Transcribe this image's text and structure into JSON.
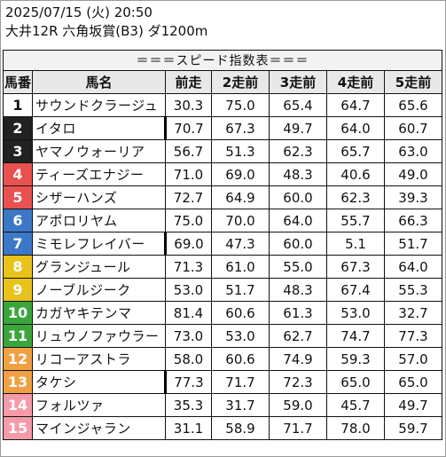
{
  "header": {
    "line1": "2025/07/15 (火) 20:50",
    "line2": "大井12R 六角坂賞(B3) ダ1200m"
  },
  "table": {
    "title": "＝＝＝スピード指数表＝＝＝",
    "columns": [
      "馬番",
      "馬名",
      "前走",
      "2走前",
      "3走前",
      "4走前",
      "5走前"
    ],
    "rows": [
      {
        "num": "1",
        "name": "サウンドクラージュ",
        "v": [
          "30.3",
          "75.0",
          "65.4",
          "64.7",
          "65.6"
        ],
        "bg": "#ffffff",
        "fg": "#111111",
        "mark": false
      },
      {
        "num": "2",
        "name": "イタロ",
        "v": [
          "70.7",
          "67.3",
          "49.7",
          "64.0",
          "60.7"
        ],
        "bg": "#222222",
        "fg": "#ffffff",
        "mark": true
      },
      {
        "num": "3",
        "name": "ヤマノウォーリア",
        "v": [
          "56.7",
          "51.3",
          "62.3",
          "65.7",
          "63.0"
        ],
        "bg": "#222222",
        "fg": "#ffffff",
        "mark": false
      },
      {
        "num": "4",
        "name": "ティーズエナジー",
        "v": [
          "71.0",
          "69.0",
          "48.3",
          "40.6",
          "49.0"
        ],
        "bg": "#e8514f",
        "fg": "#ffffff",
        "mark": false
      },
      {
        "num": "5",
        "name": "シザーハンズ",
        "v": [
          "72.7",
          "64.9",
          "60.0",
          "62.3",
          "39.3"
        ],
        "bg": "#e8514f",
        "fg": "#ffffff",
        "mark": false
      },
      {
        "num": "6",
        "name": "アポロリヤム",
        "v": [
          "75.0",
          "70.0",
          "64.0",
          "55.7",
          "66.3"
        ],
        "bg": "#3d78c8",
        "fg": "#ffffff",
        "mark": false
      },
      {
        "num": "7",
        "name": "ミモレフレイバー",
        "v": [
          "69.0",
          "47.3",
          "60.0",
          "5.1",
          "51.7"
        ],
        "bg": "#3d78c8",
        "fg": "#ffffff",
        "mark": true
      },
      {
        "num": "8",
        "name": "グランジュール",
        "v": [
          "71.3",
          "61.0",
          "55.0",
          "67.3",
          "64.0"
        ],
        "bg": "#e9c21a",
        "fg": "#ffffff",
        "mark": false
      },
      {
        "num": "9",
        "name": "ノーブルジーク",
        "v": [
          "53.0",
          "51.7",
          "48.3",
          "67.4",
          "55.3"
        ],
        "bg": "#e9c21a",
        "fg": "#ffffff",
        "mark": false
      },
      {
        "num": "10",
        "name": "カガヤキテンマ",
        "v": [
          "81.4",
          "60.6",
          "61.3",
          "53.0",
          "32.7"
        ],
        "bg": "#3aa63a",
        "fg": "#ffffff",
        "mark": false
      },
      {
        "num": "11",
        "name": "リュウノファウラー",
        "v": [
          "73.0",
          "53.0",
          "62.7",
          "74.7",
          "77.3"
        ],
        "bg": "#3aa63a",
        "fg": "#ffffff",
        "mark": false
      },
      {
        "num": "12",
        "name": "リコーアストラ",
        "v": [
          "58.0",
          "60.6",
          "74.9",
          "59.3",
          "57.0"
        ],
        "bg": "#f0a040",
        "fg": "#ffffff",
        "mark": false
      },
      {
        "num": "13",
        "name": "タケシ",
        "v": [
          "77.3",
          "71.7",
          "72.3",
          "65.0",
          "65.0"
        ],
        "bg": "#f0a040",
        "fg": "#ffffff",
        "mark": true
      },
      {
        "num": "14",
        "name": "フォルツァ",
        "v": [
          "35.3",
          "31.7",
          "59.0",
          "45.7",
          "49.7"
        ],
        "bg": "#f59aa8",
        "fg": "#ffffff",
        "mark": false
      },
      {
        "num": "15",
        "name": "マインジャラン",
        "v": [
          "31.1",
          "58.9",
          "71.7",
          "78.0",
          "59.7"
        ],
        "bg": "#f59aa8",
        "fg": "#ffffff",
        "mark": false
      }
    ]
  }
}
